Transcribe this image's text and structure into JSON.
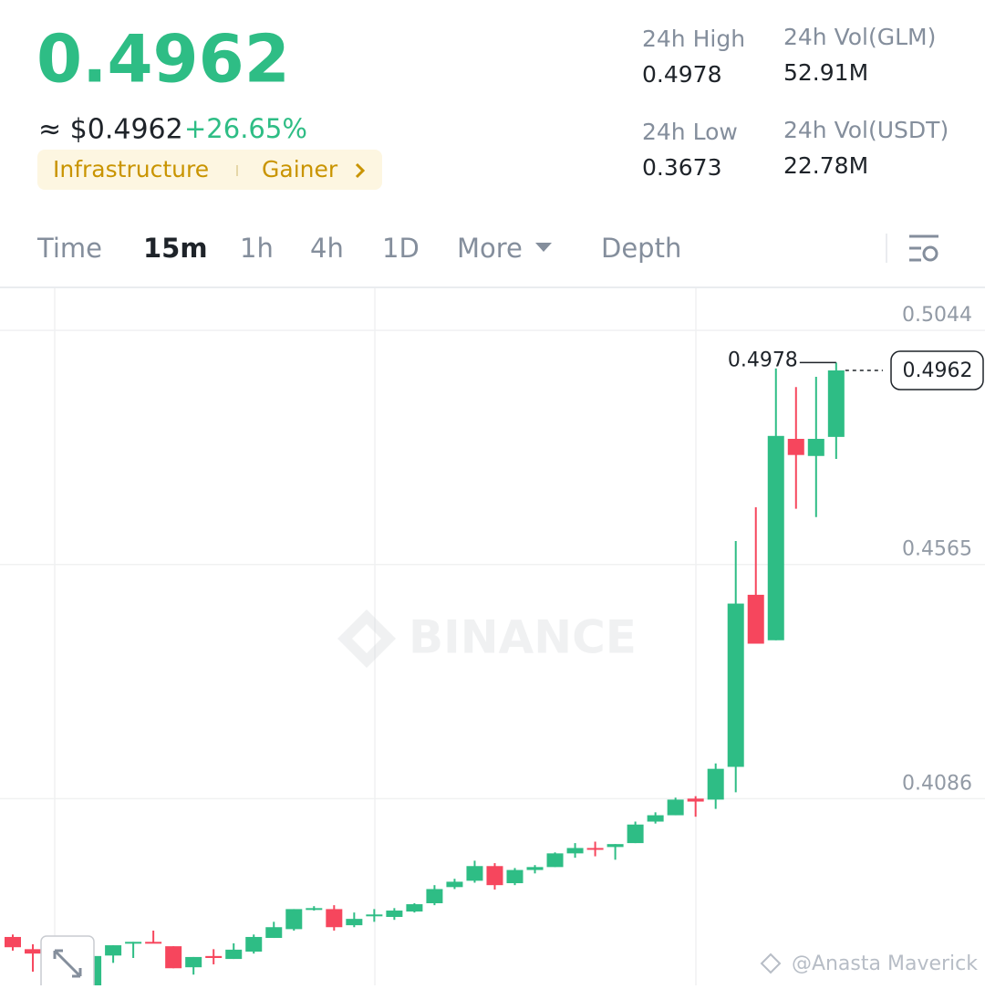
{
  "header": {
    "price": "0.4962",
    "fiat": "≈ $0.4962",
    "change": "+26.65%",
    "tags": [
      "Infrastructure",
      "Gainer"
    ]
  },
  "stats": [
    {
      "label": "24h High",
      "value": "0.4978"
    },
    {
      "label": "24h Vol(GLM)",
      "value": "52.91M"
    },
    {
      "label": "24h Low",
      "value": "0.3673"
    },
    {
      "label": "24h Vol(USDT)",
      "value": "22.78M"
    }
  ],
  "tabs": [
    "Time",
    "15m",
    "1h",
    "4h",
    "1D",
    "More",
    "Depth"
  ],
  "chart_data": {
    "type": "candlestick",
    "open": [
      0.3803,
      0.3778,
      0.3769,
      0.376,
      0.3704,
      0.3765,
      0.379,
      0.3793,
      0.3784,
      0.3741,
      0.3764,
      0.3758,
      0.3773,
      0.3801,
      0.3819,
      0.3859,
      0.386,
      0.3827,
      0.3847,
      0.3844,
      0.3855,
      0.3872,
      0.3905,
      0.3918,
      0.3948,
      0.3913,
      0.394,
      0.3946,
      0.3974,
      0.3985,
      0.3987,
      0.3995,
      0.4039,
      0.4052,
      0.4086,
      0.4084,
      0.4151,
      0.4503,
      0.441,
      0.4822,
      0.4787,
      0.4826
    ],
    "high": [
      0.3808,
      0.3788,
      0.3782,
      0.378,
      0.3769,
      0.3786,
      0.3793,
      0.3816,
      0.3784,
      0.3762,
      0.3778,
      0.379,
      0.3808,
      0.3834,
      0.386,
      0.3866,
      0.3868,
      0.3853,
      0.386,
      0.3862,
      0.3872,
      0.3909,
      0.3922,
      0.3959,
      0.3954,
      0.3944,
      0.395,
      0.3976,
      0.3995,
      0.3998,
      0.3993,
      0.4039,
      0.4058,
      0.4088,
      0.4091,
      0.4158,
      0.4613,
      0.4682,
      0.4966,
      0.4928,
      0.4949,
      0.4978
    ],
    "low": [
      0.3775,
      0.3732,
      0.3765,
      0.3755,
      0.3704,
      0.375,
      0.376,
      0.379,
      0.3739,
      0.3726,
      0.3747,
      0.3758,
      0.3769,
      0.3801,
      0.3816,
      0.3857,
      0.3816,
      0.3823,
      0.3834,
      0.3838,
      0.3853,
      0.3868,
      0.3901,
      0.3914,
      0.39,
      0.3909,
      0.3933,
      0.3946,
      0.3965,
      0.3968,
      0.3961,
      0.3995,
      0.4035,
      0.4052,
      0.4049,
      0.4065,
      0.4099,
      0.4403,
      0.441,
      0.4679,
      0.4662,
      0.4781
    ],
    "close": [
      0.3782,
      0.3769,
      0.3778,
      0.3775,
      0.3764,
      0.3786,
      0.3793,
      0.379,
      0.3739,
      0.3762,
      0.376,
      0.3777,
      0.3803,
      0.3823,
      0.386,
      0.3862,
      0.3823,
      0.384,
      0.3849,
      0.3857,
      0.387,
      0.3901,
      0.3916,
      0.3948,
      0.3909,
      0.394,
      0.3946,
      0.3974,
      0.3985,
      0.3982,
      0.3993,
      0.4033,
      0.4052,
      0.4084,
      0.408,
      0.4147,
      0.4485,
      0.4403,
      0.4828,
      0.4789,
      0.4822,
      0.4962
    ],
    "ylim": [
      0.3704,
      0.513
    ],
    "yticks": [
      0.4086,
      0.4565,
      0.5044
    ],
    "grid": true,
    "high_label": "0.4978",
    "last_price_label": "0.4962",
    "watermark": "BINANCE",
    "up_color": "#2ebd85",
    "down_color": "#f6465d"
  },
  "credit": "@Anasta Maverick"
}
